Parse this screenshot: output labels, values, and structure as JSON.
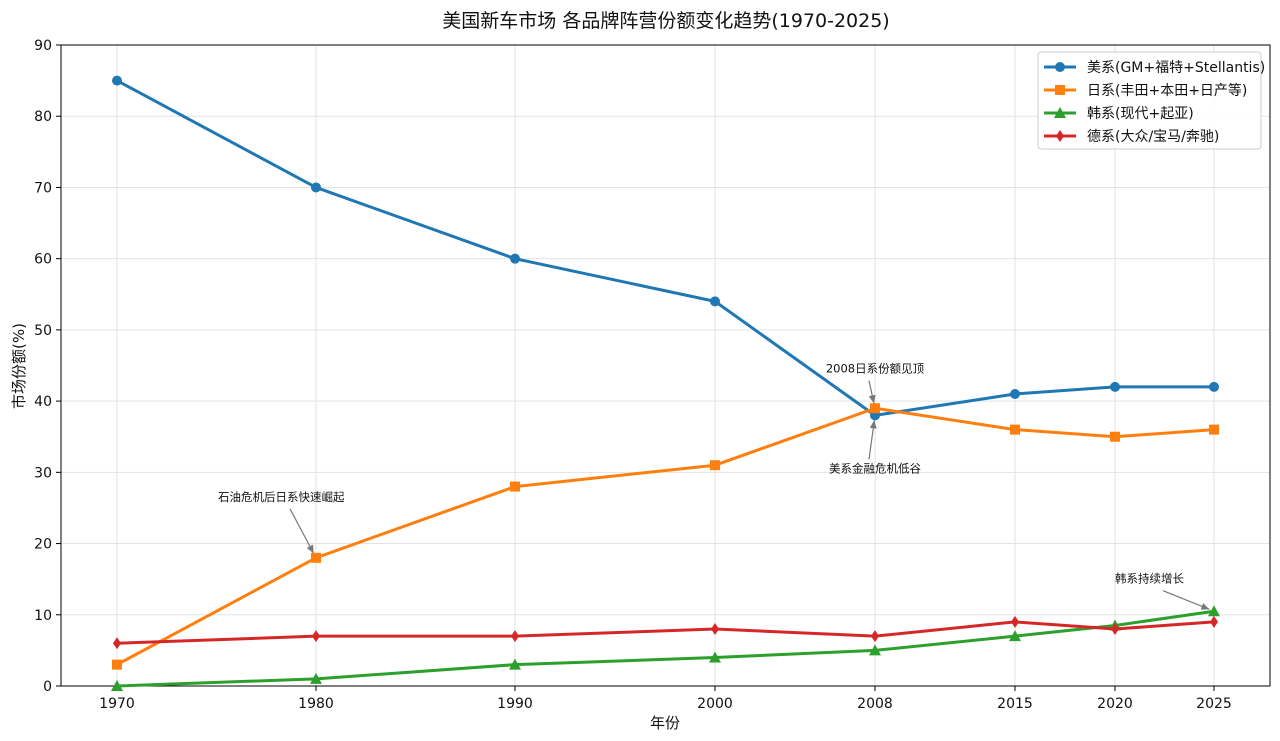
{
  "chart_data": {
    "type": "line",
    "title": "美国新车市场 各品牌阵营份额变化趋势(1970-2025)",
    "xlabel": "年份",
    "ylabel": "市场份额(%)",
    "categories": [
      "1970",
      "1980",
      "1990",
      "2000",
      "2008",
      "2015",
      "2020",
      "2025"
    ],
    "ylim": [
      0,
      90
    ],
    "yticks": [
      0,
      10,
      20,
      30,
      40,
      50,
      60,
      70,
      80,
      90
    ],
    "grid": true,
    "legend_position": "top-right",
    "series": [
      {
        "name": "美系(GM+福特+Stellantis)",
        "color": "#1f77b4",
        "marker": "circle",
        "values": [
          85,
          70,
          60,
          54,
          38,
          41,
          42,
          42
        ]
      },
      {
        "name": "日系(丰田+本田+日产等)",
        "color": "#ff7f0e",
        "marker": "square",
        "values": [
          3,
          18,
          28,
          31,
          39,
          36,
          35,
          36
        ]
      },
      {
        "name": "韩系(现代+起亚)",
        "color": "#2ca02c",
        "marker": "triangle",
        "values": [
          0,
          1,
          3,
          4,
          5,
          7,
          8.5,
          10.5
        ]
      },
      {
        "name": "德系(大众/宝马/奔驰)",
        "color": "#d62728",
        "marker": "diamond",
        "values": [
          6,
          7,
          7,
          8,
          7,
          9,
          8,
          9
        ]
      }
    ],
    "annotations": [
      {
        "text": "石油危机后日系快速崛起",
        "x": "1980",
        "y": 18,
        "text_x": "1975",
        "text_y": 26
      },
      {
        "text": "2008日系份额见顶",
        "x": "2008",
        "y": 39,
        "text_x": "2008",
        "text_y": 44
      },
      {
        "text": "美系金融危机低谷",
        "x": "2008",
        "y": 38,
        "text_x": "2008",
        "text_y": 30
      },
      {
        "text": "韩系持续增长",
        "x": "2025",
        "y": 10.5,
        "text_x": "2020",
        "text_y": 14.5
      }
    ]
  }
}
